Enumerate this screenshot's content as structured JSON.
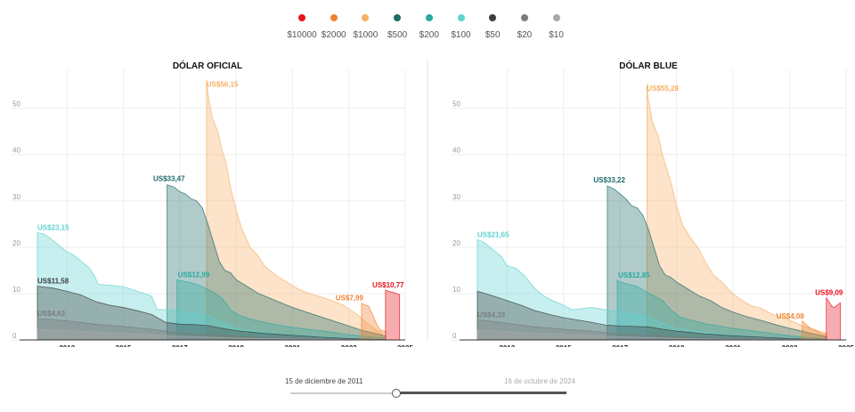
{
  "legend": [
    {
      "label": "$10000",
      "color": "#e8131c"
    },
    {
      "label": "$2000",
      "color": "#f2822f"
    },
    {
      "label": "$1000",
      "color": "#f6b064"
    },
    {
      "label": "$500",
      "color": "#1c6a66"
    },
    {
      "label": "$200",
      "color": "#2aa9a1"
    },
    {
      "label": "$100",
      "color": "#5fd2d0"
    },
    {
      "label": "$50",
      "color": "#3d3d3d"
    },
    {
      "label": "$20",
      "color": "#7c7c7c"
    },
    {
      "label": "$10",
      "color": "#a8a8a8"
    }
  ],
  "slider": {
    "start_label": "15 de diciembre de 2011",
    "end_label": "16 de octubre de 2024",
    "position": 0.38
  },
  "chart_data": [
    {
      "type": "area",
      "title": "DÓLAR OFICIAL",
      "xlabel": "",
      "ylabel": "",
      "xlim": [
        2011.95,
        2025.0
      ],
      "ylim": [
        0,
        58
      ],
      "xticks": [
        "2013",
        "2015",
        "2017",
        "2019",
        "2021",
        "2023",
        "2025"
      ],
      "yticks": [
        "0",
        "10",
        "20",
        "30",
        "40",
        "50"
      ],
      "series": [
        {
          "name": "$1000",
          "color": "#f6b064",
          "x": [
            2017.95,
            2018.0,
            2018.15,
            2018.35,
            2018.5,
            2018.65,
            2018.8,
            2019.0,
            2019.2,
            2019.5,
            2019.8,
            2020.0,
            2020.4,
            2020.8,
            2021.2,
            2021.6,
            2022.0,
            2022.4,
            2022.8,
            2023.1,
            2023.4,
            2023.6,
            2023.8,
            2024.0,
            2024.2
          ],
          "y": [
            56.15,
            53,
            48,
            45,
            41,
            38,
            33,
            28,
            24,
            20,
            18,
            16,
            14,
            12.5,
            11,
            10,
            9.3,
            8.5,
            7.5,
            6.3,
            5,
            3.8,
            2.9,
            2.0,
            1.4
          ]
        },
        {
          "name": "$500",
          "color": "#1c6a66",
          "x": [
            2016.55,
            2016.8,
            2017.0,
            2017.2,
            2017.4,
            2017.6,
            2017.8,
            2018.0,
            2018.2,
            2018.4,
            2018.6,
            2018.8,
            2019.0,
            2019.4,
            2019.8,
            2020.2,
            2020.6,
            2021.0,
            2021.5,
            2022.0,
            2022.5,
            2023.0,
            2023.5,
            2024.0,
            2024.3
          ],
          "y": [
            33.47,
            33,
            32,
            31.5,
            30.5,
            30,
            28.5,
            25,
            21,
            17,
            15,
            14.5,
            13,
            11.5,
            10,
            9,
            8,
            7,
            6,
            5,
            4,
            3,
            2,
            1.3,
            0.8
          ]
        },
        {
          "name": "$200",
          "color": "#2aa9a1",
          "x": [
            2016.9,
            2017.0,
            2017.3,
            2017.6,
            2017.9,
            2018.2,
            2018.5,
            2018.8,
            2019.1,
            2019.5,
            2020.0,
            2020.5,
            2021.0,
            2021.5,
            2022.0,
            2022.5,
            2023.0,
            2023.5,
            2024.0,
            2024.3
          ],
          "y": [
            12.99,
            12.8,
            12.5,
            12,
            11.2,
            10.3,
            9,
            6.5,
            5.3,
            4.5,
            3.8,
            3.2,
            2.7,
            2.3,
            2,
            1.6,
            1.1,
            0.8,
            0.5,
            0.4
          ]
        },
        {
          "name": "$100",
          "color": "#5fd2d0",
          "x": [
            2011.95,
            2012.2,
            2012.5,
            2012.8,
            2013.0,
            2013.2,
            2013.5,
            2013.8,
            2014.0,
            2014.1,
            2014.5,
            2015.0,
            2015.5,
            2016.0,
            2016.2,
            2016.6,
            2017.0,
            2017.5,
            2018.0,
            2018.5,
            2019.0,
            2019.5,
            2020.0,
            2021.0,
            2022.0,
            2023.0,
            2024.0,
            2024.3
          ],
          "y": [
            23.15,
            22.8,
            21.5,
            20,
            19,
            18.5,
            17,
            15.5,
            13.5,
            12,
            11.8,
            11.5,
            10.5,
            9.5,
            6.6,
            6.5,
            6.2,
            5.7,
            5.2,
            3.9,
            2.5,
            2.0,
            1.6,
            1.1,
            0.7,
            0.4,
            0.2,
            0.15
          ]
        },
        {
          "name": "$50",
          "color": "#3d3d3d",
          "x": [
            2011.95,
            2012.5,
            2013.0,
            2013.5,
            2014.0,
            2014.5,
            2015.0,
            2015.5,
            2016.0,
            2016.5,
            2017.0,
            2017.5,
            2018.0,
            2018.5,
            2019.0,
            2020.0,
            2021.0,
            2022.0,
            2023.0,
            2024.0,
            2024.3
          ],
          "y": [
            11.58,
            11.2,
            10.5,
            9.7,
            8.3,
            7.5,
            7,
            6.3,
            5.5,
            3.8,
            3.4,
            3.3,
            3.1,
            2.5,
            2,
            1.4,
            1,
            0.6,
            0.3,
            0.15,
            0.1
          ]
        },
        {
          "name": "$20",
          "color": "#7c7c7c",
          "x": [
            2011.95,
            2012.5,
            2013.0,
            2014.0,
            2015.0,
            2016.0,
            2017.0,
            2018.0,
            2019.0,
            2020.0,
            2022.0,
            2024.3
          ],
          "y": [
            4.63,
            4.4,
            4.1,
            3.4,
            2.9,
            2.3,
            1.5,
            1.2,
            0.8,
            0.5,
            0.2,
            0.05
          ]
        },
        {
          "name": "$10",
          "color": "#a8a8a8",
          "x": [
            2011.95,
            2013.0,
            2015.0,
            2017.0,
            2019.0,
            2021.0,
            2024.3
          ],
          "y": [
            2.3,
            2.0,
            1.4,
            0.8,
            0.4,
            0.2,
            0.05
          ]
        },
        {
          "name": "$2000",
          "color": "#f2822f",
          "x": [
            2023.45,
            2023.5,
            2023.7,
            2023.85,
            2024.0,
            2024.1,
            2024.3
          ],
          "y": [
            7.99,
            7.7,
            7.3,
            5.3,
            3.2,
            2.2,
            1.8
          ]
        },
        {
          "name": "$10000",
          "color": "#e8131c",
          "x": [
            2024.3,
            2024.4,
            2024.6,
            2024.75,
            2024.8
          ],
          "y": [
            10.77,
            10.5,
            10.2,
            9.9,
            9.8
          ]
        }
      ],
      "annotations": [
        {
          "text": "US$56,15",
          "series": "$1000",
          "x": 2017.95,
          "y": 56.15,
          "color": "#f6b064"
        },
        {
          "text": "US$33,47",
          "series": "$500",
          "x": 2016.55,
          "y": 33.47,
          "color": "#1c6a66"
        },
        {
          "text": "US$23,15",
          "series": "$100",
          "x": 2011.95,
          "y": 23.15,
          "color": "#5fd2d0"
        },
        {
          "text": "US$12,99",
          "series": "$200",
          "x": 2016.9,
          "y": 12.99,
          "color": "#2aa9a1"
        },
        {
          "text": "US$11,58",
          "series": "$50",
          "x": 2011.95,
          "y": 11.58,
          "color": "#3d3d3d"
        },
        {
          "text": "US$4,63",
          "series": "$20",
          "x": 2011.95,
          "y": 4.63,
          "color": "#7c7c7c"
        },
        {
          "text": "US$7,99",
          "series": "$2000",
          "x": 2023.45,
          "y": 7.99,
          "color": "#f2822f"
        },
        {
          "text": "US$10,77",
          "series": "$10000",
          "x": 2024.3,
          "y": 10.77,
          "color": "#e8131c"
        }
      ]
    },
    {
      "type": "area",
      "title": "DÓLAR BLUE",
      "xlabel": "",
      "ylabel": "",
      "xlim": [
        2011.95,
        2025.0
      ],
      "ylim": [
        0,
        58
      ],
      "xticks": [
        "2013",
        "2015",
        "2017",
        "2019",
        "2021",
        "2023",
        "2025"
      ],
      "yticks": [
        "0",
        "10",
        "20",
        "30",
        "40",
        "50"
      ],
      "series": [
        {
          "name": "$1000",
          "color": "#f6b064",
          "x": [
            2017.95,
            2018.0,
            2018.15,
            2018.35,
            2018.5,
            2018.65,
            2018.8,
            2019.0,
            2019.2,
            2019.5,
            2019.8,
            2020.0,
            2020.3,
            2020.6,
            2020.9,
            2021.2,
            2021.6,
            2022.0,
            2022.4,
            2022.8,
            2023.1,
            2023.4,
            2023.7,
            2024.0,
            2024.3
          ],
          "y": [
            55.28,
            52,
            47,
            44,
            40,
            37,
            34,
            29,
            25,
            22,
            19.5,
            17,
            14,
            12.5,
            10.5,
            9,
            7.5,
            6.8,
            5.5,
            4.8,
            4,
            3.2,
            2.6,
            2,
            1.5
          ]
        },
        {
          "name": "$500",
          "color": "#1c6a66",
          "x": [
            2016.55,
            2016.8,
            2017.0,
            2017.2,
            2017.4,
            2017.6,
            2017.8,
            2018.0,
            2018.2,
            2018.4,
            2018.6,
            2018.8,
            2019.0,
            2019.4,
            2019.8,
            2020.2,
            2020.6,
            2021.0,
            2021.5,
            2022.0,
            2022.5,
            2023.0,
            2023.5,
            2024.0,
            2024.3
          ],
          "y": [
            33.22,
            32.5,
            31.5,
            30.5,
            29,
            28.5,
            27,
            24,
            20,
            16,
            14,
            13.5,
            12.5,
            11,
            9.5,
            8.5,
            7,
            6,
            5,
            4.2,
            3.3,
            2.5,
            1.8,
            1.1,
            0.7
          ]
        },
        {
          "name": "$200",
          "color": "#2aa9a1",
          "x": [
            2016.9,
            2017.0,
            2017.3,
            2017.6,
            2017.9,
            2018.2,
            2018.5,
            2018.8,
            2019.1,
            2019.5,
            2020.0,
            2020.5,
            2021.0,
            2021.5,
            2022.0,
            2022.5,
            2023.0,
            2023.5,
            2024.0,
            2024.3
          ],
          "y": [
            12.85,
            12.5,
            12,
            11.5,
            10.5,
            9.5,
            8.5,
            6.5,
            5,
            4.3,
            3.5,
            3,
            2.5,
            2.1,
            1.7,
            1.3,
            0.9,
            0.6,
            0.4,
            0.3
          ]
        },
        {
          "name": "$100",
          "color": "#5fd2d0",
          "x": [
            2011.95,
            2012.2,
            2012.5,
            2012.8,
            2013.0,
            2013.3,
            2013.6,
            2014.0,
            2014.3,
            2014.6,
            2015.0,
            2015.3,
            2015.7,
            2016.0,
            2016.5,
            2017.0,
            2017.5,
            2018.0,
            2018.5,
            2019.0,
            2019.5,
            2020.0,
            2021.0,
            2022.0,
            2023.0,
            2024.0,
            2024.3
          ],
          "y": [
            21.65,
            21,
            19.5,
            18,
            16,
            15.5,
            14,
            11,
            9.5,
            8.5,
            7.5,
            6.5,
            6.8,
            7,
            6.5,
            6,
            5.5,
            5,
            3.6,
            2.5,
            2,
            1.6,
            1,
            0.6,
            0.35,
            0.2,
            0.15
          ]
        },
        {
          "name": "$50",
          "color": "#3d3d3d",
          "x": [
            2011.95,
            2012.5,
            2013.0,
            2013.5,
            2014.0,
            2014.5,
            2015.0,
            2015.5,
            2016.0,
            2016.5,
            2017.0,
            2017.5,
            2018.0,
            2018.5,
            2019.0,
            2020.0,
            2021.0,
            2022.0,
            2023.0,
            2024.0,
            2024.3
          ],
          "y": [
            10.5,
            9.5,
            8.5,
            7.5,
            6.3,
            5.5,
            4.8,
            4.3,
            3.8,
            3.2,
            3,
            2.9,
            2.8,
            2.3,
            1.9,
            1.3,
            0.9,
            0.6,
            0.3,
            0.15,
            0.1
          ]
        },
        {
          "name": "$20",
          "color": "#7c7c7c",
          "x": [
            2011.95,
            2012.5,
            2013.0,
            2014.0,
            2015.0,
            2016.0,
            2017.0,
            2018.0,
            2019.0,
            2020.0,
            2022.0,
            2024.3
          ],
          "y": [
            4.33,
            4,
            3.6,
            2.8,
            2.3,
            1.9,
            1.3,
            1.1,
            0.7,
            0.45,
            0.2,
            0.05
          ]
        },
        {
          "name": "$10",
          "color": "#a8a8a8",
          "x": [
            2011.95,
            2013.0,
            2015.0,
            2017.0,
            2019.0,
            2021.0,
            2024.3
          ],
          "y": [
            2.1,
            1.8,
            1.2,
            0.7,
            0.35,
            0.15,
            0.05
          ]
        },
        {
          "name": "$2000",
          "color": "#f2822f",
          "x": [
            2023.45,
            2023.55,
            2023.7,
            2023.85,
            2024.0,
            2024.1,
            2024.3
          ],
          "y": [
            4.08,
            3.5,
            2.7,
            2.2,
            1.8,
            1.4,
            1.2
          ]
        },
        {
          "name": "$10000",
          "color": "#e8131c",
          "x": [
            2024.3,
            2024.4,
            2024.5,
            2024.6,
            2024.7,
            2024.8
          ],
          "y": [
            9.09,
            8.2,
            7.2,
            7.0,
            7.6,
            8.0
          ]
        }
      ],
      "annotations": [
        {
          "text": "US$55,28",
          "series": "$1000",
          "x": 2017.95,
          "y": 55.28,
          "color": "#f6b064"
        },
        {
          "text": "US$33,22",
          "series": "$500",
          "x": 2016.55,
          "y": 33.22,
          "color": "#1c6a66"
        },
        {
          "text": "US$21,65",
          "series": "$100",
          "x": 2011.95,
          "y": 21.65,
          "color": "#5fd2d0"
        },
        {
          "text": "US$12,85",
          "series": "$200",
          "x": 2016.9,
          "y": 12.85,
          "color": "#2aa9a1"
        },
        {
          "text": "US$4,33",
          "series": "$20",
          "x": 2011.95,
          "y": 4.33,
          "color": "#7c7c7c"
        },
        {
          "text": "US$4,08",
          "series": "$2000",
          "x": 2023.45,
          "y": 4.08,
          "color": "#f2822f"
        },
        {
          "text": "US$9,09",
          "series": "$10000",
          "x": 2024.3,
          "y": 9.09,
          "color": "#e8131c"
        }
      ]
    }
  ]
}
